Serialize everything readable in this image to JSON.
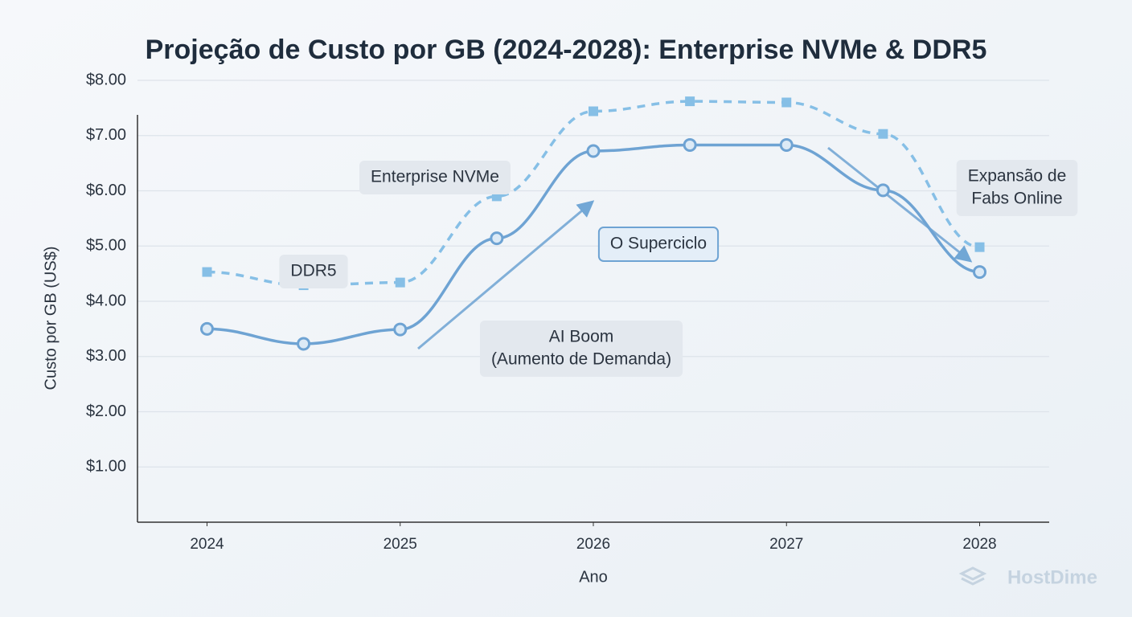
{
  "chart_data": {
    "type": "line",
    "title": "Projeção de Custo por GB (2024-2028): Enterprise NVMe & DDR5",
    "x_label": "Ano",
    "y_label": "Custo por GB (US$)",
    "x": [
      2024,
      2024.5,
      2025,
      2025.5,
      2026,
      2026.5,
      2027,
      2027.5,
      2028
    ],
    "series": [
      {
        "name": "DDR5",
        "color": "#6ea3d3",
        "marker": "circle",
        "dashed": false,
        "values": [
          3.5,
          3.23,
          3.49,
          5.14,
          6.72,
          6.83,
          6.83,
          6.01,
          4.53
        ]
      },
      {
        "name": "Enterprise NVMe",
        "color": "#86bfe6",
        "marker": "square",
        "dashed": true,
        "values": [
          4.53,
          4.29,
          4.34,
          5.9,
          7.44,
          7.62,
          7.6,
          7.03,
          4.98
        ]
      }
    ],
    "xlim": [
      2023.64,
      2028.36
    ],
    "xticks": [
      2024,
      2025,
      2026,
      2027,
      2028
    ],
    "ylim": [
      0,
      8
    ],
    "yticks": [
      {
        "value": 1,
        "label": "$1.00"
      },
      {
        "value": 2,
        "label": "$2.00"
      },
      {
        "value": 3,
        "label": "$3.00"
      },
      {
        "value": 4,
        "label": "$4.00"
      },
      {
        "value": 5,
        "label": "$5.00"
      },
      {
        "value": 6,
        "label": "$6.00"
      },
      {
        "value": 7,
        "label": "$7.00"
      },
      {
        "value": 8,
        "label": "$8.00"
      }
    ],
    "grid": true,
    "annotations": [
      {
        "lines": [
          "O Superciclo"
        ]
      },
      {
        "lines": [
          "AI Boom",
          "(Aumento de Demanda)"
        ]
      },
      {
        "lines": [
          "Expansão de",
          "Fabs Online"
        ]
      }
    ],
    "watermark": "HostDime"
  }
}
